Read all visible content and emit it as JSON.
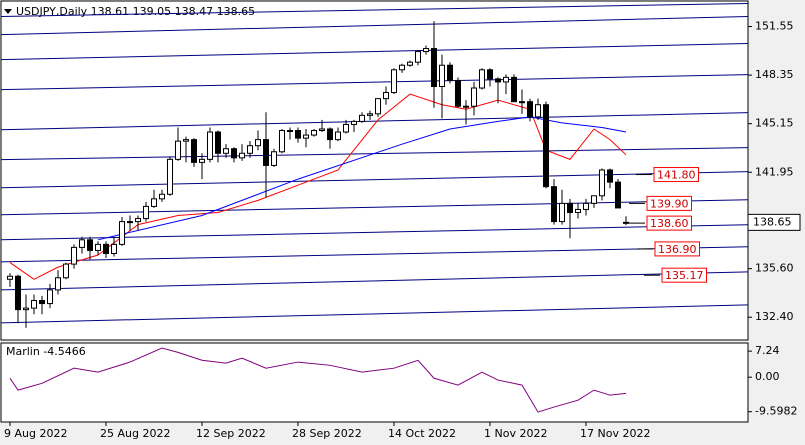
{
  "chart_data": {
    "type": "candlestick",
    "title": "USDJPY,Daily  138.61 139.05 138.47 138.65",
    "categories": [
      "9 Aug 2022",
      null,
      null,
      null,
      null,
      null,
      null,
      null,
      null,
      null,
      null,
      null,
      "25 Aug 2022",
      null,
      null,
      null,
      null,
      null,
      null,
      null,
      null,
      null,
      null,
      null,
      "12 Sep 2022",
      null,
      null,
      null,
      null,
      null,
      null,
      null,
      null,
      null,
      null,
      null,
      "28 Sep 2022",
      null,
      null,
      null,
      null,
      null,
      null,
      null,
      null,
      null,
      null,
      null,
      "14 Oct 2022",
      null,
      null,
      null,
      null,
      null,
      null,
      null,
      null,
      null,
      null,
      null,
      "1 Nov 2022",
      null,
      null,
      null,
      null,
      null,
      null,
      null,
      null,
      null,
      null,
      null,
      "17 Nov 2022",
      null,
      null,
      null,
      null,
      null
    ],
    "ohlc": {
      "open": [
        134.9,
        135.1,
        132.9,
        133.0,
        133.5,
        133.3,
        134.2,
        135.0,
        135.9,
        137.0,
        137.5,
        136.8,
        137.2,
        136.6,
        137.2,
        138.7,
        138.7,
        138.9,
        139.7,
        140.2,
        140.5,
        142.8,
        144.0,
        144.1,
        142.6,
        142.8,
        144.6,
        143.2,
        143.5,
        142.9,
        143.2,
        143.7,
        144.1,
        142.4,
        143.3,
        144.7,
        144.7,
        144.2,
        144.4,
        144.7,
        144.8,
        144.1,
        144.6,
        145.1,
        145.3,
        145.7,
        145.8,
        146.8,
        147.2,
        148.7,
        149.0,
        149.2,
        149.9,
        150.1,
        147.6,
        149.0,
        148.0,
        146.3,
        146.3,
        147.5,
        148.7,
        148.1,
        147.9,
        148.2,
        146.6,
        146.6,
        145.6,
        146.4,
        141.0,
        138.7,
        139.9,
        139.3,
        139.5,
        139.9,
        140.4,
        142.1,
        141.3,
        138.61
      ],
      "high": [
        135.3,
        135.2,
        133.9,
        133.9,
        133.8,
        134.6,
        135.5,
        136.0,
        137.2,
        137.7,
        137.7,
        137.4,
        137.4,
        137.7,
        139.0,
        139.1,
        139.1,
        140.0,
        140.8,
        140.8,
        143.0,
        144.9,
        144.3,
        144.2,
        143.2,
        144.9,
        144.7,
        143.8,
        143.6,
        143.8,
        144.0,
        144.7,
        145.9,
        143.5,
        144.8,
        144.9,
        144.9,
        144.8,
        144.8,
        145.4,
        144.9,
        144.9,
        145.4,
        145.4,
        145.9,
        146.0,
        146.8,
        147.6,
        148.8,
        149.1,
        149.3,
        149.9,
        150.3,
        151.9,
        149.7,
        149.2,
        148.2,
        146.7,
        147.9,
        148.8,
        148.8,
        148.2,
        148.4,
        148.4,
        147.4,
        146.8,
        146.8,
        146.6,
        141.5,
        140.8,
        140.2,
        139.9,
        140.2,
        140.4,
        142.2,
        142.2,
        141.5,
        139.05
      ],
      "low": [
        134.4,
        132.0,
        131.7,
        132.6,
        132.6,
        133.0,
        133.9,
        134.9,
        135.6,
        136.6,
        136.2,
        136.5,
        136.3,
        136.4,
        137.1,
        138.1,
        138.1,
        138.7,
        139.6,
        140.0,
        140.4,
        142.7,
        142.6,
        142.3,
        141.5,
        142.6,
        142.6,
        142.9,
        142.6,
        142.7,
        142.9,
        143.4,
        140.3,
        142.3,
        143.2,
        144.1,
        143.9,
        143.6,
        144.3,
        144.6,
        143.5,
        144.0,
        144.5,
        144.6,
        145.2,
        145.4,
        145.6,
        146.4,
        147.1,
        148.5,
        148.9,
        149.0,
        149.7,
        146.2,
        145.5,
        147.8,
        146.2,
        145.1,
        145.7,
        147.4,
        147.6,
        146.5,
        147.1,
        146.6,
        145.8,
        145.3,
        145.4,
        140.9,
        138.5,
        138.5,
        137.6,
        138.9,
        139.1,
        139.6,
        140.1,
        140.9,
        139.6,
        138.47
      ],
      "close": [
        135.1,
        132.9,
        133.0,
        133.5,
        133.3,
        134.2,
        135.0,
        135.9,
        137.0,
        137.5,
        136.8,
        137.2,
        136.6,
        137.2,
        138.7,
        138.7,
        138.9,
        139.7,
        140.2,
        140.5,
        142.8,
        144.0,
        144.1,
        142.6,
        142.8,
        144.6,
        143.2,
        143.5,
        142.9,
        143.2,
        143.7,
        144.1,
        142.4,
        143.3,
        144.7,
        144.7,
        144.2,
        144.4,
        144.7,
        144.8,
        144.1,
        144.6,
        145.1,
        145.3,
        145.7,
        145.8,
        146.8,
        147.2,
        148.7,
        149.0,
        149.2,
        149.9,
        150.1,
        147.6,
        149.0,
        148.0,
        146.3,
        146.3,
        147.5,
        148.7,
        148.1,
        147.9,
        148.2,
        146.6,
        146.6,
        145.6,
        146.4,
        141.0,
        138.7,
        139.9,
        139.3,
        139.5,
        139.9,
        140.4,
        142.1,
        141.3,
        139.6,
        138.65
      ]
    },
    "moving_averages": [
      {
        "color": "#ff0000",
        "x": [
          0,
          3,
          6,
          11,
          16,
          21,
          26,
          31,
          36,
          41,
          46,
          50,
          54,
          57,
          61,
          65,
          67,
          70,
          73,
          75,
          77
        ],
        "values": [
          136.0,
          134.9,
          135.7,
          136.5,
          138.5,
          139.1,
          139.3,
          140.1,
          141.1,
          142.1,
          145.4,
          147.1,
          146.4,
          146.1,
          146.7,
          146.1,
          143.4,
          142.8,
          144.8,
          144.1,
          143.1
        ]
      },
      {
        "color": "#0000ff",
        "x": [
          11,
          24,
          36,
          49,
          55,
          61,
          65,
          69,
          74,
          77
        ],
        "values": [
          137.5,
          139.1,
          141.5,
          143.8,
          144.8,
          145.3,
          145.6,
          145.2,
          144.9,
          144.6
        ]
      }
    ],
    "trendlines": [
      [
        152.21,
        153.07
      ],
      [
        151.02,
        152.21
      ],
      [
        149.37,
        150.43
      ],
      [
        147.39,
        148.38
      ],
      [
        144.75,
        145.88
      ],
      [
        142.78,
        143.57
      ],
      [
        140.93,
        141.99
      ],
      [
        139.15,
        140.14
      ],
      [
        137.5,
        138.49
      ],
      [
        136.05,
        137.04
      ],
      [
        134.2,
        135.39
      ],
      [
        132.03,
        133.21
      ]
    ],
    "levels": [
      {
        "value": 141.8,
        "label": "141.80"
      },
      {
        "value": 139.9,
        "label": "139.90"
      },
      {
        "value": 138.6,
        "label": "138.60"
      },
      {
        "value": 136.9,
        "label": "136.90"
      },
      135.17
    ],
    "price_label": 138.65,
    "ylim": [
      130.9,
      153.1
    ],
    "yticks": [
      151.55,
      148.35,
      145.15,
      141.95,
      {
        "value": 135.6,
        "label": "135.60"
      },
      {
        "value": 132.4,
        "label": "132.40"
      }
    ],
    "indicator": {
      "label": "Marlin -4.5466",
      "color": "#800080",
      "x": [
        0,
        1,
        4,
        8,
        11,
        15,
        19,
        21,
        24,
        27,
        29,
        32,
        36,
        40,
        44,
        48,
        51,
        53,
        56,
        59,
        61,
        64,
        66,
        68,
        71,
        73,
        75,
        77
      ],
      "values": [
        -0.28,
        -3.6,
        -1.7,
        2.5,
        1.4,
        4.2,
        8.1,
        6.9,
        4.7,
        3.9,
        5.3,
        2.5,
        4.2,
        3.3,
        1.4,
        2.5,
        4.7,
        -0.3,
        -2.2,
        1.4,
        -0.8,
        -2.2,
        -9.7,
        -8.3,
        -6.4,
        -3.6,
        -5.0,
        -4.5
      ],
      "ylim": [
        -11.9,
        9.5
      ],
      "yticks": [
        7.24,
        {
          "value": 0,
          "label": "0.00"
        },
        -9.5982
      ]
    }
  }
}
